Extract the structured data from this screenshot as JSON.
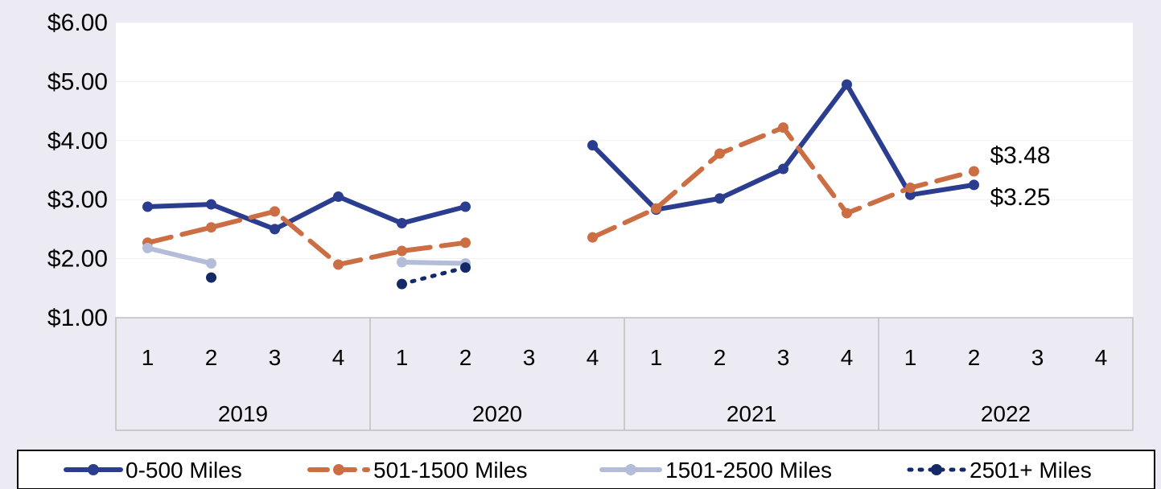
{
  "chart_data": {
    "type": "line",
    "title": "",
    "xlabel": "",
    "ylabel": "",
    "ylim": [
      1,
      6
    ],
    "yticks": [
      "$1.00",
      "$2.00",
      "$3.00",
      "$4.00",
      "$5.00",
      "$6.00"
    ],
    "yticks_values": [
      1,
      2,
      3,
      4,
      5,
      6
    ],
    "grid": true,
    "legend_position": "bottom",
    "groups": [
      {
        "label": "2019",
        "categories": [
          "1",
          "2",
          "3",
          "4"
        ]
      },
      {
        "label": "2020",
        "categories": [
          "1",
          "2",
          "3",
          "4"
        ]
      },
      {
        "label": "2021",
        "categories": [
          "1",
          "2",
          "3",
          "4"
        ]
      },
      {
        "label": "2022",
        "categories": [
          "1",
          "2",
          "3",
          "4"
        ]
      }
    ],
    "series": [
      {
        "name": "0-500 Miles",
        "color": "#2b3d8f",
        "style": "solid",
        "values": [
          2.88,
          2.92,
          2.5,
          3.05,
          2.6,
          2.88,
          null,
          3.92,
          2.83,
          3.02,
          3.52,
          4.95,
          3.08,
          3.25,
          null,
          null
        ]
      },
      {
        "name": "501-1500 Miles",
        "color": "#cc6e44",
        "style": "dashed",
        "values": [
          2.27,
          2.53,
          2.8,
          1.9,
          2.13,
          2.27,
          null,
          2.36,
          2.85,
          3.78,
          4.22,
          2.77,
          3.2,
          3.48,
          null,
          null
        ]
      },
      {
        "name": "1501-2500 Miles",
        "color": "#b3bcd9",
        "style": "solid",
        "values": [
          2.18,
          1.92,
          null,
          null,
          1.94,
          1.92,
          null,
          null,
          null,
          null,
          null,
          null,
          null,
          null,
          null,
          null
        ]
      },
      {
        "name": "2501+ Miles",
        "color": "#132a66",
        "style": "dotted",
        "values": [
          null,
          1.68,
          null,
          null,
          1.57,
          1.85,
          null,
          null,
          null,
          null,
          null,
          null,
          null,
          null,
          null,
          null
        ]
      }
    ],
    "annotations": [
      {
        "text": "$3.48",
        "series": "501-1500 Miles",
        "index": 13
      },
      {
        "text": "$3.25",
        "series": "0-500 Miles",
        "index": 13
      }
    ]
  }
}
